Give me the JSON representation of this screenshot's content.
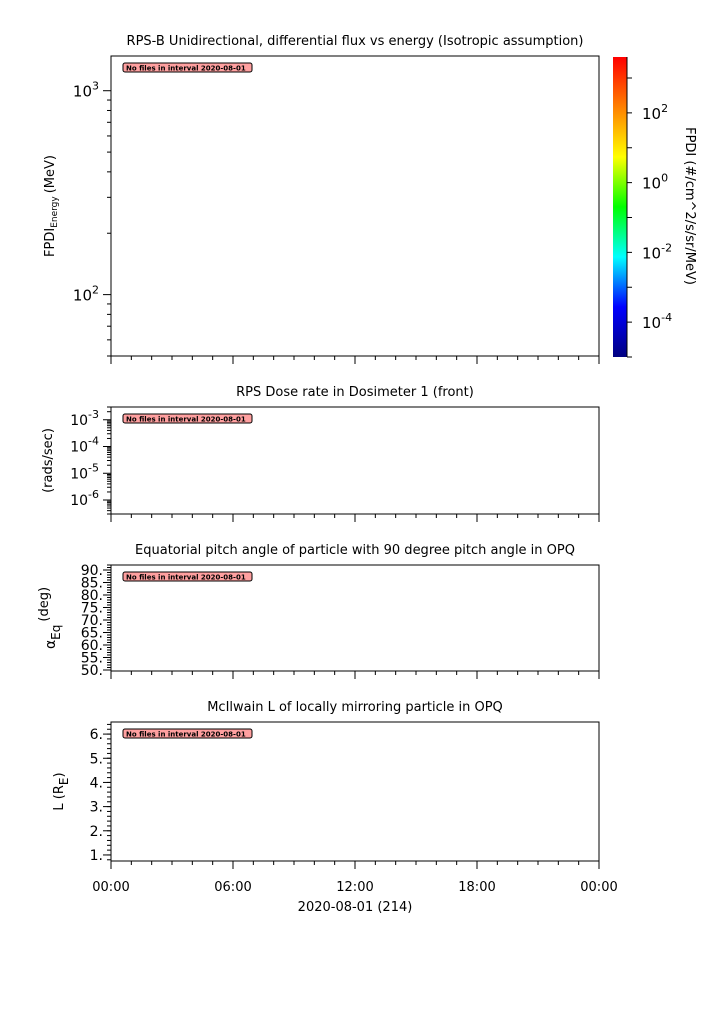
{
  "chart_data": [
    {
      "type": "heatmap",
      "title": "RPS-B  Unidirectional, differential flux vs energy (Isotropic assumption)",
      "ylabel_main": "FPDI",
      "ylabel_sub": "Energy",
      "ylabel_unit": "(MeV)",
      "yscale": "log",
      "ylim": [
        50,
        1480
      ],
      "yticks": [
        {
          "v": 100,
          "base": "10",
          "exp": "2"
        },
        {
          "v": 1000,
          "base": "10",
          "exp": "3"
        }
      ],
      "message": "No files in interval 2020-08-01",
      "colorbar": {
        "label": "FPDI (#/cm^2/s/sr/MeV)",
        "scale": "log",
        "range": [
          1e-05,
          4000
        ],
        "ticks": [
          {
            "v": 0.0001,
            "base": "10",
            "exp": "-4"
          },
          {
            "v": 0.01,
            "base": "10",
            "exp": "-2"
          },
          {
            "v": 1,
            "base": "10",
            "exp": "0"
          },
          {
            "v": 100,
            "base": "10",
            "exp": "2"
          }
        ],
        "colormap": [
          "#000080",
          "#0000ff",
          "#00ffff",
          "#00ff00",
          "#ffff00",
          "#ff8000",
          "#ff0000"
        ]
      }
    },
    {
      "type": "line",
      "title": "RPS  Dose rate in Dosimeter 1 (front)",
      "ylabel": "(rads/sec)",
      "yscale": "log",
      "ylim": [
        3e-07,
        0.003
      ],
      "yticks": [
        {
          "v": 1e-06,
          "base": "10",
          "exp": "-6"
        },
        {
          "v": 1e-05,
          "base": "10",
          "exp": "-5"
        },
        {
          "v": 0.0001,
          "base": "10",
          "exp": "-4"
        },
        {
          "v": 0.001,
          "base": "10",
          "exp": "-3"
        }
      ],
      "message": "No files in interval 2020-08-01"
    },
    {
      "type": "line",
      "title": "Equatorial pitch angle of particle with 90 degree pitch angle in OPQ",
      "ylabel_main": "α",
      "ylabel_sub": "Eq",
      "ylabel_unit": "(deg)",
      "yscale": "linear",
      "ylim": [
        49.6,
        92
      ],
      "yticks": [
        {
          "v": 50,
          "label": "50."
        },
        {
          "v": 55,
          "label": "55."
        },
        {
          "v": 60,
          "label": "60."
        },
        {
          "v": 65,
          "label": "65."
        },
        {
          "v": 70,
          "label": "70."
        },
        {
          "v": 75,
          "label": "75."
        },
        {
          "v": 80,
          "label": "80."
        },
        {
          "v": 85,
          "label": "85."
        },
        {
          "v": 90,
          "label": "90."
        }
      ],
      "message": "No files in interval 2020-08-01"
    },
    {
      "type": "line",
      "title": "McIlwain L of locally mirroring particle in OPQ",
      "ylabel_main": "L (R",
      "ylabel_sub": "E",
      "ylabel_unit": ")",
      "yscale": "linear",
      "ylim": [
        0.75,
        6.5
      ],
      "yticks": [
        {
          "v": 1,
          "label": "1."
        },
        {
          "v": 2,
          "label": "2."
        },
        {
          "v": 3,
          "label": "3."
        },
        {
          "v": 4,
          "label": "4."
        },
        {
          "v": 5,
          "label": "5."
        },
        {
          "v": 6,
          "label": "6."
        }
      ],
      "message": "No files in interval 2020-08-01"
    }
  ],
  "xaxis": {
    "xlim_hours": [
      0,
      24
    ],
    "ticks": [
      {
        "h": 0,
        "label": "00:00"
      },
      {
        "h": 6,
        "label": "06:00"
      },
      {
        "h": 12,
        "label": "12:00"
      },
      {
        "h": 18,
        "label": "18:00"
      },
      {
        "h": 24,
        "label": "00:00"
      }
    ],
    "label": "2020-08-01 (214)"
  },
  "colors": {
    "message_bg": "#ffa0a0",
    "axis": "#000000"
  }
}
